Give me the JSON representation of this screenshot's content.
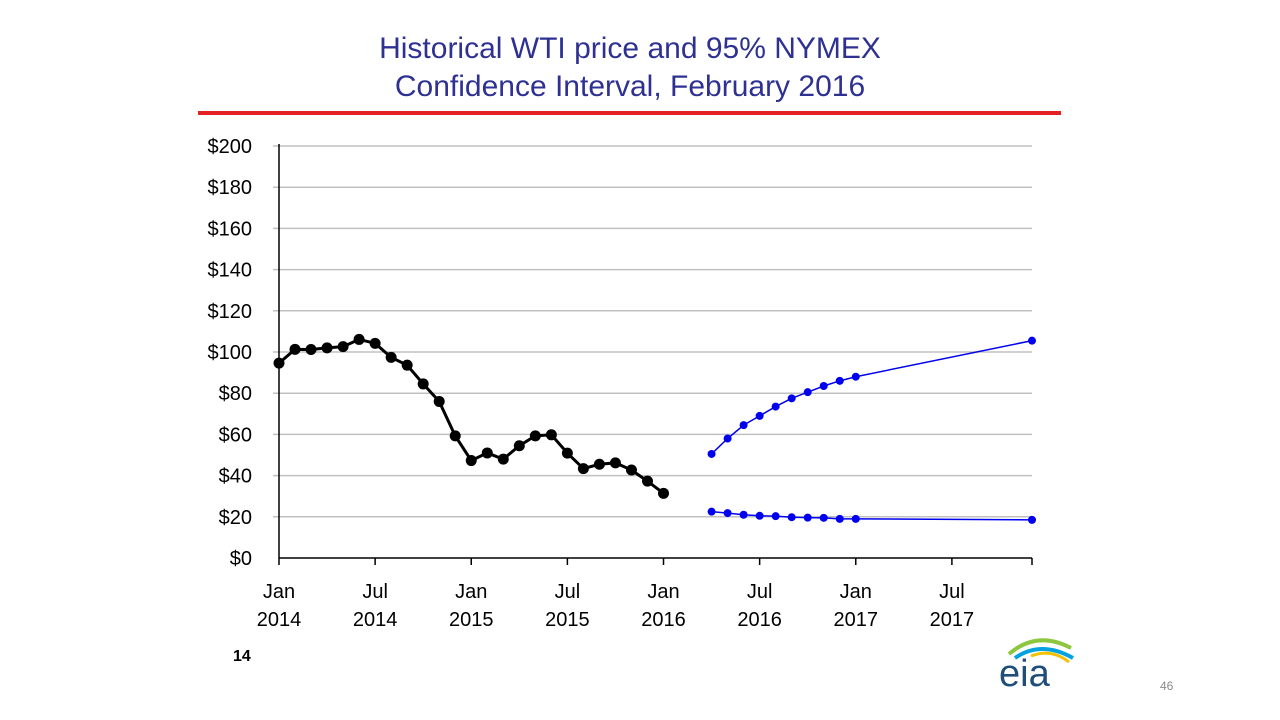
{
  "slide": {
    "title_line1": "Historical WTI price and 95% NYMEX",
    "title_line2": "Confidence Interval, February 2016",
    "slide_label": "14",
    "page_number": "46",
    "logo_text": "eia"
  },
  "colors": {
    "title": "#2e3192",
    "rule": "#e32323",
    "historical": "#000000",
    "confidence": "#0000ee",
    "grid": "#c0c0c0",
    "logo_text": "#1f4e79",
    "logo_arc_green": "#8dc63f",
    "logo_arc_blue": "#00a3e0",
    "logo_arc_yellow": "#f2c200"
  },
  "chart_data": {
    "type": "line",
    "title": "Historical WTI price and 95% NYMEX Confidence Interval, February 2016",
    "xlabel": "",
    "ylabel": "",
    "ylim": [
      0,
      200
    ],
    "yticks": [
      0,
      20,
      40,
      60,
      80,
      100,
      120,
      140,
      160,
      180,
      200
    ],
    "ytick_labels": [
      "$0",
      "$20",
      "$40",
      "$60",
      "$80",
      "$100",
      "$120",
      "$140",
      "$160",
      "$180",
      "$200"
    ],
    "xlim": [
      "2014-01",
      "2017-12"
    ],
    "xticks": [
      "2014-01",
      "2014-07",
      "2015-01",
      "2015-07",
      "2016-01",
      "2016-07",
      "2017-01",
      "2017-07"
    ],
    "xtick_labels": [
      [
        "Jan",
        "2014"
      ],
      [
        "Jul",
        "2014"
      ],
      [
        "Jan",
        "2015"
      ],
      [
        "Jul",
        "2015"
      ],
      [
        "Jan",
        "2016"
      ],
      [
        "Jul",
        "2016"
      ],
      [
        "Jan",
        "2017"
      ],
      [
        "Jul",
        "2017"
      ]
    ],
    "grid": true,
    "legend": "none",
    "series": [
      {
        "role": "historical",
        "x": [
          "2014-01",
          "2014-02",
          "2014-03",
          "2014-04",
          "2014-05",
          "2014-06",
          "2014-07",
          "2014-08",
          "2014-09",
          "2014-10",
          "2014-11",
          "2014-12",
          "2015-01",
          "2015-02",
          "2015-03",
          "2015-04",
          "2015-05",
          "2015-06",
          "2015-07",
          "2015-08",
          "2015-09",
          "2015-10",
          "2015-11",
          "2015-12",
          "2016-01"
        ],
        "y": [
          94.6,
          101.3,
          101.2,
          102.0,
          102.6,
          106.1,
          104.2,
          97.4,
          93.6,
          84.5,
          76.0,
          59.3,
          47.3,
          51.0,
          48.0,
          54.5,
          59.3,
          59.8,
          50.9,
          43.4,
          45.5,
          46.2,
          42.7,
          37.3,
          31.4
        ]
      },
      {
        "role": "upper-95-confidence",
        "x": [
          "2016-04",
          "2016-05",
          "2016-06",
          "2016-07",
          "2016-08",
          "2016-09",
          "2016-10",
          "2016-11",
          "2016-12",
          "2017-01",
          "2017-02",
          "2017-12"
        ],
        "y": [
          50.5,
          58.0,
          64.5,
          69.0,
          73.5,
          77.5,
          80.5,
          83.5,
          86.0,
          88.0,
          0,
          105.5
        ],
        "present": [
          true,
          true,
          true,
          true,
          true,
          true,
          true,
          true,
          true,
          true,
          false,
          true
        ]
      },
      {
        "role": "lower-95-confidence",
        "x": [
          "2016-04",
          "2016-05",
          "2016-06",
          "2016-07",
          "2016-08",
          "2016-09",
          "2016-10",
          "2016-11",
          "2016-12",
          "2017-01",
          "2017-02",
          "2017-12"
        ],
        "y": [
          22.5,
          21.8,
          21.0,
          20.5,
          20.3,
          19.8,
          19.6,
          19.5,
          19.0,
          19.0,
          0,
          18.5
        ],
        "present": [
          true,
          true,
          true,
          true,
          true,
          true,
          true,
          true,
          true,
          true,
          false,
          true
        ]
      }
    ]
  }
}
